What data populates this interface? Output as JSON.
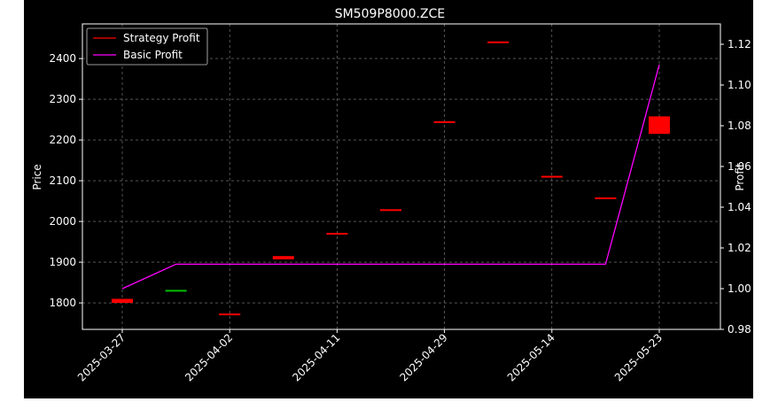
{
  "chart_data": {
    "type": "candlestick",
    "title": "SM509P8000.ZCE",
    "xlabel": "",
    "ylabel": "Price",
    "y2label": "Profit",
    "x_ticks": [
      "2025-03-27",
      "2025-04-02",
      "2025-04-11",
      "2025-04-29",
      "2025-05-14",
      "2025-05-23"
    ],
    "y_ticks": [
      1800,
      1900,
      2000,
      2100,
      2200,
      2300,
      2400
    ],
    "y2_ticks": [
      "0.98",
      "1.00",
      "1.02",
      "1.04",
      "1.06",
      "1.08",
      "1.10",
      "1.12"
    ],
    "ylim": [
      1735,
      2485
    ],
    "y2lim": [
      0.98,
      1.13
    ],
    "grid": true,
    "legend_position": "top-left",
    "legend": [
      "Strategy Profit",
      "Basic Profit"
    ],
    "candles": [
      {
        "open": 1810,
        "close": 1800,
        "color": "#ff0000"
      },
      {
        "open": 1832,
        "close": 1830,
        "color": "#00c000"
      },
      {
        "open": 1774,
        "close": 1770,
        "color": "#ff0000"
      },
      {
        "open": 1915,
        "close": 1907,
        "color": "#ff0000"
      },
      {
        "open": 1972,
        "close": 1970,
        "color": "#ff0000"
      },
      {
        "open": 2030,
        "close": 2028,
        "color": "#ff0000"
      },
      {
        "open": 2246,
        "close": 2244,
        "color": "#ff0000"
      },
      {
        "open": 2442,
        "close": 2440,
        "color": "#ff0000"
      },
      {
        "open": 2112,
        "close": 2110,
        "color": "#ff0000"
      },
      {
        "open": 2059,
        "close": 2057,
        "color": "#ff0000"
      },
      {
        "open": 2258,
        "close": 2215,
        "color": "#ff0000"
      }
    ],
    "series": [
      {
        "name": "Strategy Profit",
        "color": "#ff0000",
        "values": []
      },
      {
        "name": "Basic Profit",
        "color": "#ff00ff",
        "values": [
          1.0,
          1.012,
          1.012,
          1.012,
          1.012,
          1.012,
          1.012,
          1.012,
          1.012,
          1.012,
          1.11
        ]
      }
    ],
    "colors": {
      "background": "#000000",
      "axes": "#ffffff",
      "grid": "#888888",
      "up": "#00c000",
      "down": "#ff0000"
    }
  }
}
